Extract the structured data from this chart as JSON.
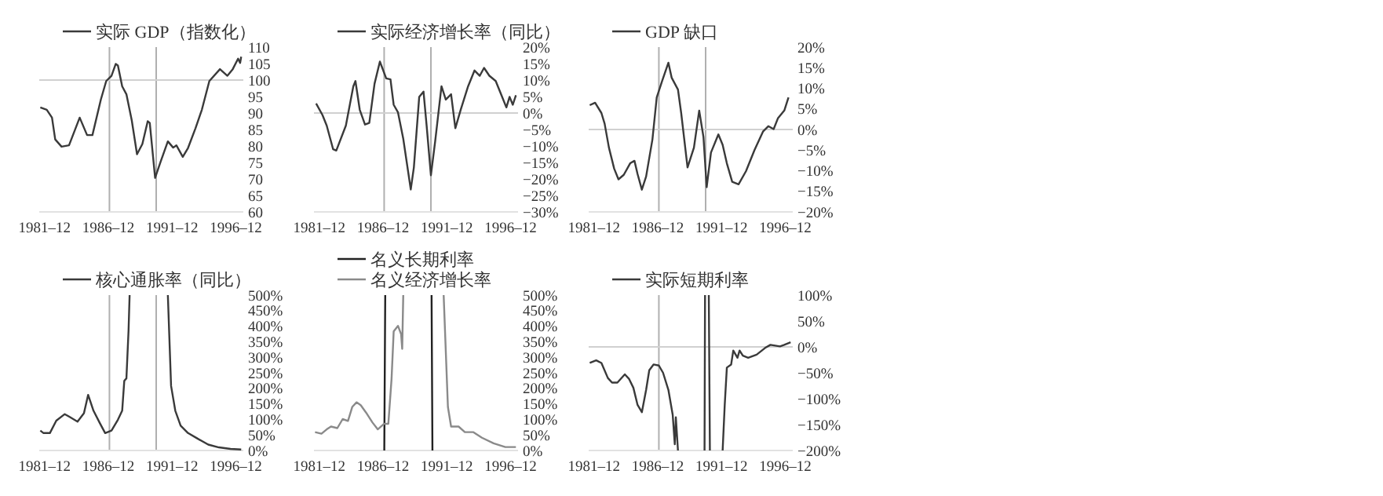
{
  "chart_data": [
    {
      "type": "line",
      "legend": "top",
      "grid": false,
      "xlim": [
        "1981-07",
        "1997-07"
      ],
      "xticks": [
        {
          "value": "1981-12",
          "label": "1981–12"
        },
        {
          "value": "1986-12",
          "label": "1986–12"
        },
        {
          "value": "1991-12",
          "label": "1991–12"
        },
        {
          "value": "1996-12",
          "label": "1996–12"
        }
      ],
      "ylim": [
        60,
        110
      ],
      "yticks": [
        60,
        65,
        70,
        75,
        80,
        85,
        90,
        95,
        100,
        105,
        110
      ],
      "ref_lines": [
        {
          "axis": "x",
          "value": "1987-01",
          "color": "#b0b0b0"
        },
        {
          "axis": "x",
          "value": "1990-09",
          "color": "#b0b0b0"
        },
        {
          "axis": "y",
          "value": 100,
          "color": "#d0d0d0"
        }
      ],
      "series": [
        {
          "name": "实际 GDP（指数化）",
          "color": "#3a3a3a",
          "x": [
            "1981-08",
            "1982-02",
            "1982-07",
            "1982-10",
            "1983-04",
            "1983-11",
            "1984-09",
            "1985-04",
            "1985-09",
            "1986-05",
            "1986-10",
            "1987-03",
            "1987-07",
            "1987-09",
            "1988-01",
            "1988-05",
            "1988-10",
            "1989-03",
            "1989-08",
            "1990-01",
            "1990-03",
            "1990-08",
            "1991-01",
            "1991-08",
            "1992-01",
            "1992-04",
            "1992-10",
            "1993-03",
            "1993-10",
            "1994-04",
            "1994-11",
            "1995-09",
            "1996-04",
            "1996-09",
            "1997-02",
            "1997-04",
            "1997-05"
          ],
          "values": [
            91.7,
            91,
            88.6,
            82,
            79.8,
            80.2,
            88.6,
            83.3,
            83.3,
            94.1,
            99.7,
            101.3,
            104.9,
            104.4,
            98.1,
            95.7,
            87.8,
            77.5,
            80.6,
            87.5,
            87,
            70.3,
            75.1,
            81.4,
            79.5,
            80.2,
            76.7,
            79.4,
            85.4,
            91,
            99.7,
            103.3,
            101.3,
            103.3,
            106.5,
            105.2,
            107.1
          ]
        }
      ]
    },
    {
      "type": "line",
      "legend": "top",
      "grid": false,
      "xlim": [
        "1981-07",
        "1997-07"
      ],
      "xticks": [
        {
          "value": "1981-12",
          "label": "1981–12"
        },
        {
          "value": "1986-12",
          "label": "1986–12"
        },
        {
          "value": "1991-12",
          "label": "1991–12"
        },
        {
          "value": "1996-12",
          "label": "1996–12"
        }
      ],
      "ylim": [
        -30,
        20
      ],
      "yticks": [
        {
          "value": -30,
          "label": "−30%"
        },
        {
          "value": -25,
          "label": "−25%"
        },
        {
          "value": -20,
          "label": "−20%"
        },
        {
          "value": -15,
          "label": "−15%"
        },
        {
          "value": -10,
          "label": "−10%"
        },
        {
          "value": -5,
          "label": "−5%"
        },
        {
          "value": 0,
          "label": "0%"
        },
        {
          "value": 5,
          "label": "5%"
        },
        {
          "value": 10,
          "label": "10%"
        },
        {
          "value": 15,
          "label": "15%"
        },
        {
          "value": 20,
          "label": "20%"
        }
      ],
      "ref_lines": [
        {
          "axis": "x",
          "value": "1987-01",
          "color": "#b0b0b0"
        },
        {
          "axis": "x",
          "value": "1990-09",
          "color": "#b0b0b0"
        },
        {
          "axis": "y",
          "value": 0,
          "color": "#d0d0d0"
        }
      ],
      "series": [
        {
          "name": "实际经济增长率（同比）",
          "color": "#3a3a3a",
          "x": [
            "1981-09",
            "1982-03",
            "1982-07",
            "1983-01",
            "1983-04",
            "1984-01",
            "1984-08",
            "1984-10",
            "1985-02",
            "1985-07",
            "1985-11",
            "1986-04",
            "1986-09",
            "1987-03",
            "1987-07",
            "1987-10",
            "1988-02",
            "1988-07",
            "1989-02",
            "1989-05",
            "1989-10",
            "1990-02",
            "1990-05",
            "1990-09",
            "1991-01",
            "1991-07",
            "1991-11",
            "1992-04",
            "1992-08",
            "1993-01",
            "1993-08",
            "1994-02",
            "1994-07",
            "1994-11",
            "1995-04",
            "1995-10",
            "1996-03",
            "1996-08",
            "1996-11",
            "1997-02",
            "1997-05"
          ],
          "values": [
            2.9,
            -0.6,
            -3.8,
            -11,
            -11.4,
            -3.8,
            8.1,
            9.7,
            1,
            -3.5,
            -3,
            8.9,
            15.6,
            10.5,
            10.2,
            2.5,
            0.2,
            -7.8,
            -23.2,
            -16.5,
            4.9,
            6.5,
            -3.8,
            -18.9,
            -8.6,
            8.1,
            4.1,
            5.7,
            -4.6,
            1,
            8.1,
            12.9,
            11.3,
            13.7,
            11.3,
            9.7,
            5.7,
            1.7,
            4.9,
            2.5,
            5.4
          ]
        }
      ]
    },
    {
      "type": "line",
      "legend": "top",
      "grid": false,
      "xlim": [
        "1981-07",
        "1997-07"
      ],
      "xticks": [
        {
          "value": "1981-12",
          "label": "1981–12"
        },
        {
          "value": "1986-12",
          "label": "1986–12"
        },
        {
          "value": "1991-12",
          "label": "1991–12"
        },
        {
          "value": "1996-12",
          "label": "1996–12"
        }
      ],
      "ylim": [
        -20,
        20
      ],
      "yticks": [
        {
          "value": -20,
          "label": "−20%"
        },
        {
          "value": -15,
          "label": "−15%"
        },
        {
          "value": -10,
          "label": "−10%"
        },
        {
          "value": -5,
          "label": "−5%"
        },
        {
          "value": 0,
          "label": "0%"
        },
        {
          "value": 5,
          "label": "5%"
        },
        {
          "value": 10,
          "label": "10%"
        },
        {
          "value": 15,
          "label": "15%"
        },
        {
          "value": 20,
          "label": "20%"
        }
      ],
      "ref_lines": [
        {
          "axis": "x",
          "value": "1987-01",
          "color": "#b0b0b0"
        },
        {
          "axis": "x",
          "value": "1990-09",
          "color": "#b0b0b0"
        },
        {
          "axis": "y",
          "value": 0,
          "color": "#d0d0d0"
        }
      ],
      "series": [
        {
          "name": "GDP 缺口",
          "color": "#3a3a3a",
          "x": [
            "1981-08",
            "1982-01",
            "1982-07",
            "1982-10",
            "1983-02",
            "1983-07",
            "1983-11",
            "1984-04",
            "1984-10",
            "1985-02",
            "1985-05",
            "1985-09",
            "1986-01",
            "1986-07",
            "1986-11",
            "1987-04",
            "1987-10",
            "1988-01",
            "1988-07",
            "1988-10",
            "1989-04",
            "1989-10",
            "1990-03",
            "1990-07",
            "1990-10",
            "1991-02",
            "1991-09",
            "1992-01",
            "1992-05",
            "1992-10",
            "1993-04",
            "1993-11",
            "1994-07",
            "1995-03",
            "1995-08",
            "1996-01",
            "1996-05",
            "1996-11",
            "1997-03"
          ],
          "values": [
            5.9,
            6.5,
            4,
            1.4,
            -4.4,
            -9.5,
            -12.1,
            -11,
            -8.2,
            -7.6,
            -10.8,
            -14.6,
            -11.4,
            -2.4,
            7.8,
            11.7,
            16.2,
            12.6,
            9.7,
            4,
            -9.2,
            -4.4,
            4.6,
            -1.8,
            -14,
            -5.6,
            -1.2,
            -3.7,
            -8.2,
            -12.7,
            -13.3,
            -10.1,
            -5,
            -0.5,
            0.8,
            0.1,
            2.7,
            4.6,
            7.8
          ]
        }
      ]
    },
    {
      "type": "line",
      "legend": "top",
      "grid": false,
      "xlim": [
        "1981-07",
        "1997-07"
      ],
      "xticks": [
        {
          "value": "1981-12",
          "label": "1981–12"
        },
        {
          "value": "1986-12",
          "label": "1986–12"
        },
        {
          "value": "1991-12",
          "label": "1991–12"
        },
        {
          "value": "1996-12",
          "label": "1996–12"
        }
      ],
      "ylim": [
        0,
        500
      ],
      "yticks": [
        {
          "value": 0,
          "label": "0%"
        },
        {
          "value": 50,
          "label": "50%"
        },
        {
          "value": 100,
          "label": "100%"
        },
        {
          "value": 150,
          "label": "150%"
        },
        {
          "value": 200,
          "label": "200%"
        },
        {
          "value": 250,
          "label": "250%"
        },
        {
          "value": 300,
          "label": "300%"
        },
        {
          "value": 350,
          "label": "350%"
        },
        {
          "value": 400,
          "label": "400%"
        },
        {
          "value": 450,
          "label": "450%"
        },
        {
          "value": 500,
          "label": "500%"
        }
      ],
      "ref_lines": [
        {
          "axis": "x",
          "value": "1987-01",
          "color": "#b0b0b0"
        },
        {
          "axis": "x",
          "value": "1990-09",
          "color": "#b0b0b0"
        }
      ],
      "series": [
        {
          "name": "核心通胀率（同比）",
          "color": "#3a3a3a",
          "x": [
            "1981-08",
            "1981-11",
            "1982-05",
            "1982-11",
            "1983-07",
            "1983-11",
            "1984-07",
            "1985-01",
            "1985-05",
            "1985-10",
            "1986-04",
            "1986-09",
            "1987-03",
            "1987-09",
            "1988-01",
            "1988-03",
            "1988-05",
            "1988-07",
            "1988-08",
            "1990-01",
            "1991-08",
            "1991-11",
            "1992-03",
            "1992-08",
            "1993-03",
            "1993-11",
            "1994-10",
            "1995-08",
            "1996-07",
            "1997-05"
          ],
          "values": [
            64,
            56,
            56,
            96,
            117,
            109,
            93,
            120,
            179,
            128,
            88,
            56,
            64,
            99,
            128,
            224,
            232,
            385,
            500,
            null,
            500,
            208,
            128,
            80,
            56,
            40,
            19,
            10,
            5,
            3
          ]
        }
      ]
    },
    {
      "type": "line",
      "legend": "top",
      "grid": false,
      "xlim": [
        "1981-07",
        "1997-07"
      ],
      "xticks": [
        {
          "value": "1981-12",
          "label": "1981–12"
        },
        {
          "value": "1986-12",
          "label": "1986–12"
        },
        {
          "value": "1991-12",
          "label": "1991–12"
        },
        {
          "value": "1996-12",
          "label": "1996–12"
        }
      ],
      "ylim": [
        0,
        500
      ],
      "yticks": [
        {
          "value": 0,
          "label": "0%"
        },
        {
          "value": 50,
          "label": "50%"
        },
        {
          "value": 100,
          "label": "100%"
        },
        {
          "value": 150,
          "label": "150%"
        },
        {
          "value": 200,
          "label": "200%"
        },
        {
          "value": 250,
          "label": "250%"
        },
        {
          "value": 300,
          "label": "300%"
        },
        {
          "value": 350,
          "label": "350%"
        },
        {
          "value": 400,
          "label": "400%"
        },
        {
          "value": 450,
          "label": "450%"
        },
        {
          "value": 500,
          "label": "500%"
        }
      ],
      "series": [
        {
          "name": "名义长期利率",
          "color": "#222222",
          "x": [
            "1987-01-05",
            "1987-02-01",
            "1989-01",
            "1990-09-20",
            "1990-10-15"
          ],
          "values": [
            0,
            500,
            null,
            500,
            0
          ]
        },
        {
          "name": "名义经济增长率",
          "color": "#8a8a8a",
          "x": [
            "1981-08",
            "1982-02",
            "1982-07",
            "1982-11",
            "1983-05",
            "1983-10",
            "1984-03",
            "1984-07",
            "1984-11",
            "1985-03",
            "1985-08",
            "1986-02",
            "1986-07",
            "1987-01",
            "1987-05",
            "1987-08",
            "1987-10",
            "1988-02",
            "1988-05",
            "1988-06",
            "1988-07",
            "1990-01",
            "1991-09",
            "1992-01",
            "1992-04",
            "1992-11",
            "1993-05",
            "1994-01",
            "1994-09",
            "1995-08",
            "1996-07",
            "1997-05"
          ],
          "values": [
            59,
            54,
            68,
            77,
            72,
            101,
            95,
            140,
            155,
            146,
            122,
            90,
            68,
            86,
            86,
            230,
            383,
            401,
            374,
            327,
            500,
            null,
            500,
            140,
            77,
            77,
            59,
            59,
            41,
            23,
            11,
            11
          ]
        }
      ]
    },
    {
      "type": "line",
      "legend": "top",
      "grid": false,
      "xlim": [
        "1981-07",
        "1997-07"
      ],
      "xticks": [
        {
          "value": "1981-12",
          "label": "1981–12"
        },
        {
          "value": "1986-12",
          "label": "1986–12"
        },
        {
          "value": "1991-12",
          "label": "1991–12"
        },
        {
          "value": "1996-12",
          "label": "1996–12"
        }
      ],
      "ylim": [
        -200,
        100
      ],
      "yticks": [
        {
          "value": -200,
          "label": "−200%"
        },
        {
          "value": -150,
          "label": "−150%"
        },
        {
          "value": -100,
          "label": "−100%"
        },
        {
          "value": -50,
          "label": "−50%"
        },
        {
          "value": 0,
          "label": "0%"
        },
        {
          "value": 50,
          "label": "50%"
        },
        {
          "value": 100,
          "label": "100%"
        }
      ],
      "ref_lines": [
        {
          "axis": "x",
          "value": "1987-01",
          "color": "#b0b0b0"
        },
        {
          "axis": "y",
          "value": 0,
          "color": "#d0d0d0"
        }
      ],
      "series": [
        {
          "name": "实际短期利率",
          "color": "#3a3a3a",
          "x": [
            "1981-08",
            "1982-02",
            "1982-07",
            "1983-01",
            "1983-05",
            "1983-10",
            "1984-05",
            "1984-09",
            "1985-01",
            "1985-05",
            "1985-09",
            "1986-01",
            "1986-04",
            "1986-08",
            "1987-01",
            "1987-05",
            "1987-10",
            "1988-02",
            "1988-04",
            "1988-05",
            "1988-07",
            "1989-07",
            "1990-08-01",
            "1990-08-15",
            "1990-10",
            "1990-12-01",
            "1991-01-01",
            "1991-07",
            "1992-01",
            "1992-03",
            "1992-05",
            "1992-09",
            "1992-11",
            "1993-03",
            "1993-05",
            "1993-08",
            "1994-01",
            "1994-09",
            "1995-05",
            "1995-10",
            "1996-07",
            "1996-11",
            "1997-05"
          ],
          "values": [
            -31,
            -26,
            -31,
            -60,
            -69,
            -69,
            -53,
            -62,
            -79,
            -112,
            -126,
            -83,
            -45,
            -34,
            -36,
            -50,
            -83,
            -131,
            -188,
            -136,
            -200,
            null,
            -200,
            100,
            null,
            100,
            -200,
            null,
            -200,
            -112,
            -40,
            -34,
            -7,
            -21,
            -7,
            -17,
            -21,
            -15,
            -2,
            4,
            1,
            4,
            9
          ]
        }
      ]
    }
  ]
}
